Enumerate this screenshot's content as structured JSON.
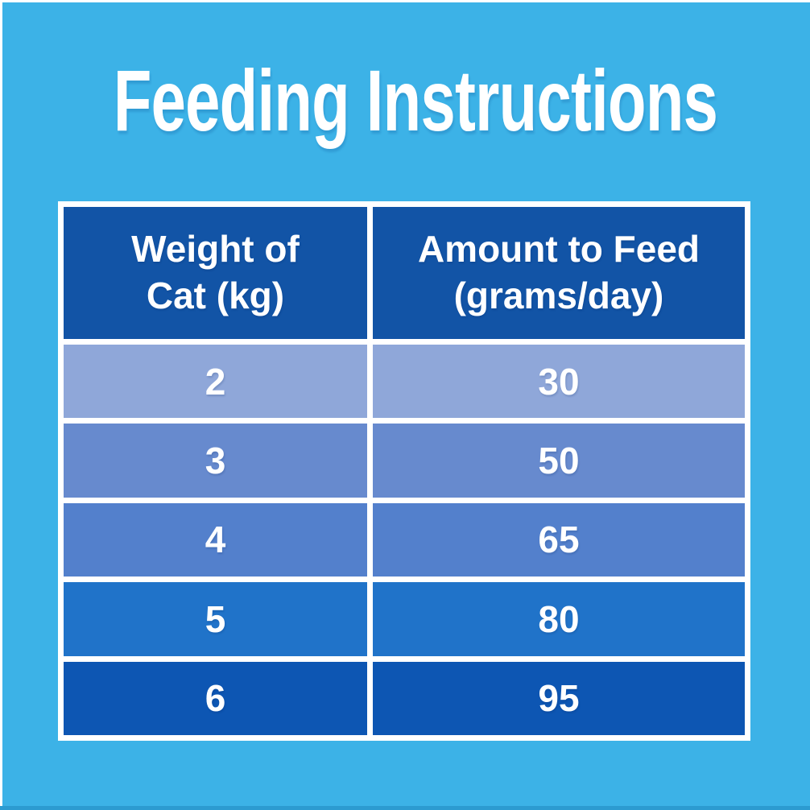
{
  "colors": {
    "background": "#3cb2e7",
    "frame_border": "#ffffff",
    "header_cell": "#1254a6",
    "bottom_edge": "#2c9bd1"
  },
  "title": "Feeding Instructions",
  "table": {
    "headers": [
      "Weight of\nCat (kg)",
      "Amount to Feed\n(grams/day)"
    ],
    "rows": [
      {
        "weight": "2",
        "amount": "30",
        "color": "#8fa7d9"
      },
      {
        "weight": "3",
        "amount": "50",
        "color": "#678ace"
      },
      {
        "weight": "4",
        "amount": "65",
        "color": "#5380cc"
      },
      {
        "weight": "5",
        "amount": "80",
        "color": "#2073c9"
      },
      {
        "weight": "6",
        "amount": "95",
        "color": "#0d56b3"
      }
    ]
  },
  "chart_data": {
    "type": "table",
    "title": "Feeding Instructions",
    "columns": [
      "Weight of Cat (kg)",
      "Amount to Feed (grams/day)"
    ],
    "rows": [
      [
        2,
        30
      ],
      [
        3,
        50
      ],
      [
        4,
        65
      ],
      [
        5,
        80
      ],
      [
        6,
        95
      ]
    ]
  }
}
